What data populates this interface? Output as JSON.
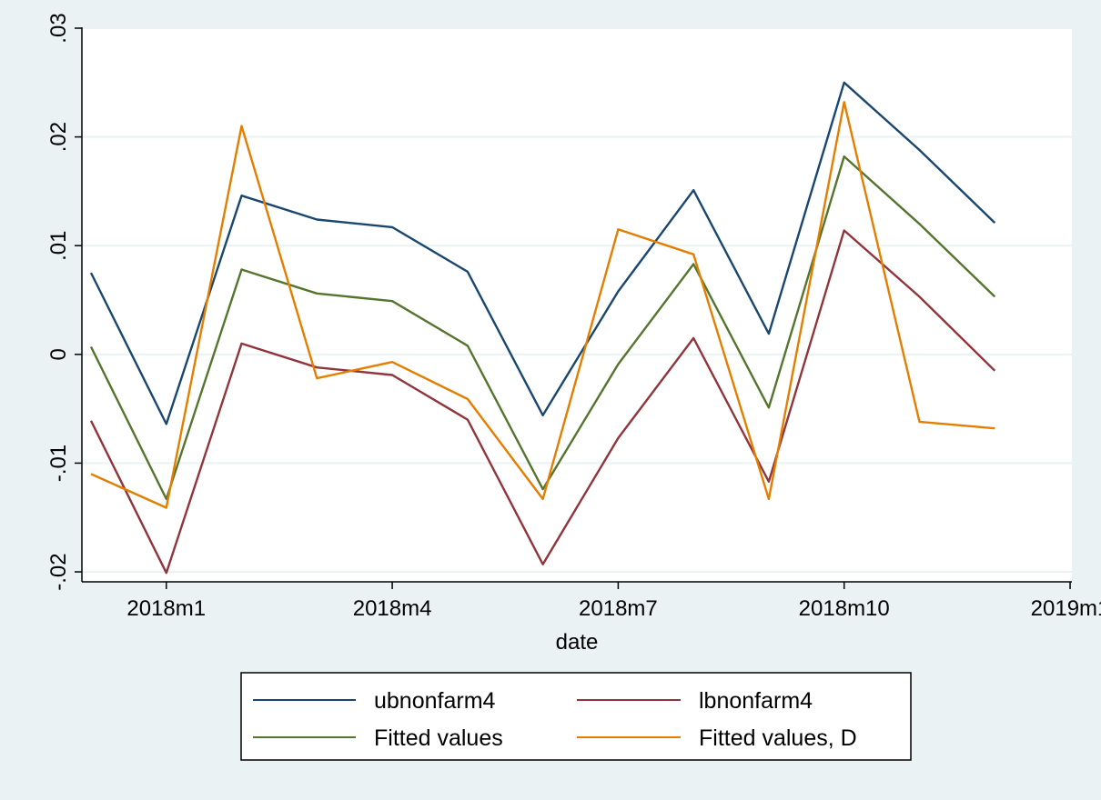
{
  "chart_data": {
    "type": "line",
    "xlabel": "date",
    "ylabel": "",
    "x": [
      "2017m12",
      "2018m1",
      "2018m2",
      "2018m3",
      "2018m4",
      "2018m5",
      "2018m6",
      "2018m7",
      "2018m8",
      "2018m9",
      "2018m10",
      "2018m11",
      "2018m12"
    ],
    "xlim": [
      "2017m12",
      "2019m1"
    ],
    "x_ticks": [
      "2018m1",
      "2018m4",
      "2018m7",
      "2018m10",
      "2019m1"
    ],
    "ylim": [
      -0.021,
      0.03
    ],
    "y_ticks": [
      {
        "value": -0.02,
        "label": "-.02"
      },
      {
        "value": -0.01,
        "label": "-.01"
      },
      {
        "value": 0,
        "label": "0"
      },
      {
        "value": 0.01,
        "label": ".01"
      },
      {
        "value": 0.02,
        "label": ".02"
      },
      {
        "value": 0.03,
        "label": ".03"
      }
    ],
    "grid": true,
    "legend_position": "bottom",
    "series": [
      {
        "name": "ubnonfarm4",
        "color": "#1a476f",
        "values": [
          0.0075,
          -0.0064,
          0.0146,
          0.0124,
          0.0117,
          0.0076,
          -0.0056,
          0.0058,
          0.0151,
          0.0019,
          0.025,
          0.0188,
          0.0121
        ]
      },
      {
        "name": "lbnonfarm4",
        "color": "#90353b",
        "values": [
          -0.0061,
          -0.0201,
          0.001,
          -0.0012,
          -0.0019,
          -0.006,
          -0.0193,
          -0.0077,
          0.0015,
          -0.0117,
          0.0114,
          0.0053,
          -0.0015
        ]
      },
      {
        "name": "Fitted values",
        "color": "#55752f",
        "values": [
          0.0007,
          -0.0133,
          0.0078,
          0.0056,
          0.0049,
          0.0008,
          -0.0124,
          -0.0009,
          0.0083,
          -0.0049,
          0.0182,
          0.012,
          0.0053
        ]
      },
      {
        "name": "Fitted values, D",
        "color": "#e37e00",
        "values": [
          -0.011,
          -0.0141,
          0.021,
          -0.0022,
          -0.0007,
          -0.0041,
          -0.0133,
          0.0115,
          0.0092,
          -0.0133,
          0.0232,
          -0.0062,
          -0.0068
        ]
      }
    ]
  }
}
